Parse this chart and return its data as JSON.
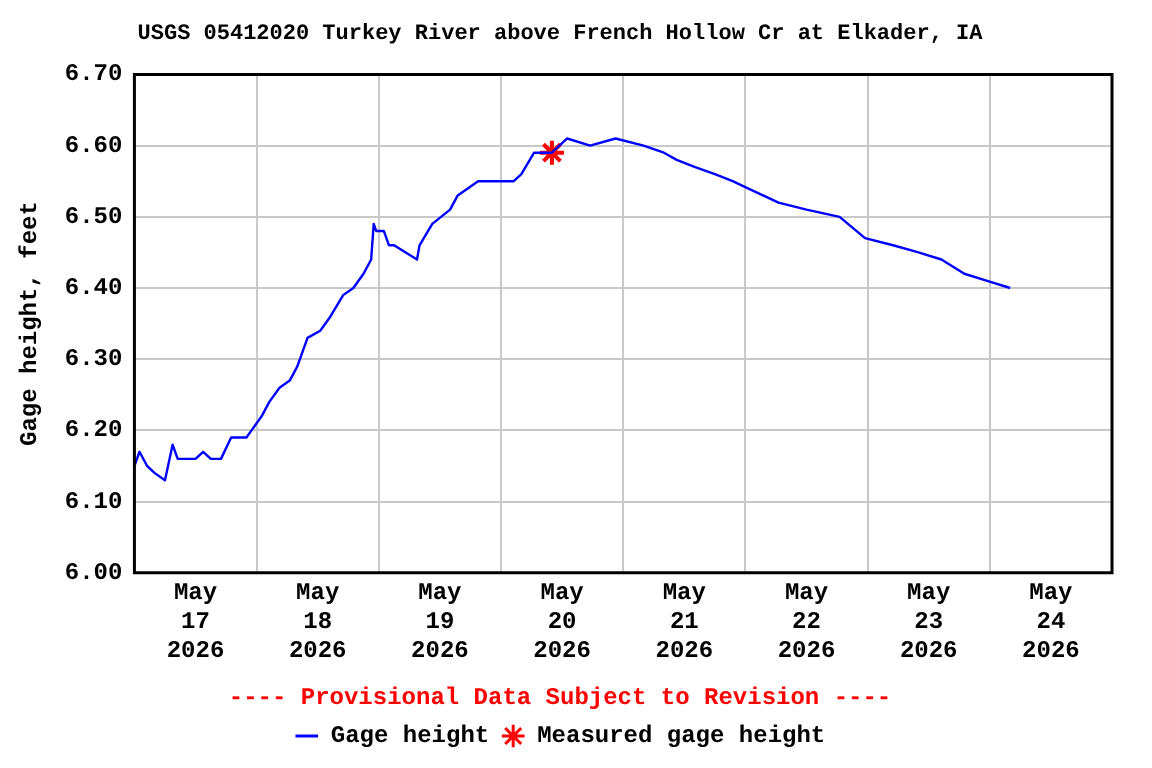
{
  "chart_data": {
    "type": "line",
    "title": "USGS 05412020 Turkey River above French Hollow Cr at Elkader, IA",
    "ylabel": "Gage height, feet",
    "annotations": [
      "---- Provisional Data Subject to Revision ----"
    ],
    "xlim": [
      "2026-05-17T00:00",
      "2026-05-25T00:00"
    ],
    "xticks": [
      {
        "value": "2026-05-17T00:00",
        "label": null
      },
      {
        "value": "2026-05-17T12:00",
        "label": "May 17 2026"
      },
      {
        "value": "2026-05-18T00:00",
        "label": null
      },
      {
        "value": "2026-05-18T12:00",
        "label": "May 18 2026"
      },
      {
        "value": "2026-05-19T00:00",
        "label": null
      },
      {
        "value": "2026-05-19T12:00",
        "label": "May 19 2026"
      },
      {
        "value": "2026-05-20T00:00",
        "label": null
      },
      {
        "value": "2026-05-20T12:00",
        "label": "May 20 2026"
      },
      {
        "value": "2026-05-21T00:00",
        "label": null
      },
      {
        "value": "2026-05-21T12:00",
        "label": "May 21 2026"
      },
      {
        "value": "2026-05-22T00:00",
        "label": null
      },
      {
        "value": "2026-05-22T12:00",
        "label": "May 22 2026"
      },
      {
        "value": "2026-05-23T00:00",
        "label": null
      },
      {
        "value": "2026-05-23T12:00",
        "label": "May 23 2026"
      },
      {
        "value": "2026-05-24T00:00",
        "label": null
      },
      {
        "value": "2026-05-24T12:00",
        "label": "May 24 2026"
      },
      {
        "value": "2026-05-25T00:00",
        "label": null
      }
    ],
    "ylim": [
      6.0,
      6.7
    ],
    "yticks": [
      {
        "value": 6.0,
        "label": "6.00"
      },
      {
        "value": 6.1,
        "label": "6.10"
      },
      {
        "value": 6.2,
        "label": "6.20"
      },
      {
        "value": 6.3,
        "label": "6.30"
      },
      {
        "value": 6.4,
        "label": "6.40"
      },
      {
        "value": 6.5,
        "label": "6.50"
      },
      {
        "value": 6.6,
        "label": "6.60"
      },
      {
        "value": 6.7,
        "label": "6.70"
      }
    ],
    "grid": true,
    "legend": "bottom",
    "series": [
      {
        "name": "Gage height",
        "color": "#0000ff",
        "marker": "none",
        "x": [
          "2026-05-17T00:00",
          "2026-05-17T01:00",
          "2026-05-17T02:30",
          "2026-05-17T04:00",
          "2026-05-17T06:00",
          "2026-05-17T07:30",
          "2026-05-17T08:30",
          "2026-05-17T12:00",
          "2026-05-17T13:30",
          "2026-05-17T15:00",
          "2026-05-17T17:00",
          "2026-05-17T19:00",
          "2026-05-17T22:00",
          "2026-05-17T23:00",
          "2026-05-18T01:00",
          "2026-05-18T02:30",
          "2026-05-18T04:30",
          "2026-05-18T06:30",
          "2026-05-18T08:00",
          "2026-05-18T10:00",
          "2026-05-18T12:30",
          "2026-05-18T14:30",
          "2026-05-18T17:00",
          "2026-05-18T19:00",
          "2026-05-18T21:00",
          "2026-05-18T22:30",
          "2026-05-18T23:00",
          "2026-05-18T23:30",
          "2026-05-19T01:00",
          "2026-05-19T02:00",
          "2026-05-19T03:00",
          "2026-05-19T07:30",
          "2026-05-19T08:00",
          "2026-05-19T10:30",
          "2026-05-19T14:00",
          "2026-05-19T15:30",
          "2026-05-19T19:30",
          "2026-05-19T22:00",
          "2026-05-20T02:30",
          "2026-05-20T04:00",
          "2026-05-20T06:30",
          "2026-05-20T10:00",
          "2026-05-20T13:00",
          "2026-05-20T17:30",
          "2026-05-20T22:30",
          "2026-05-21T04:00",
          "2026-05-21T08:00",
          "2026-05-21T10:30",
          "2026-05-21T14:00",
          "2026-05-21T18:00",
          "2026-05-21T21:30",
          "2026-05-22T00:30",
          "2026-05-22T06:30",
          "2026-05-22T12:00",
          "2026-05-22T18:30",
          "2026-05-22T23:30",
          "2026-05-23T05:00",
          "2026-05-23T10:00",
          "2026-05-23T14:30",
          "2026-05-23T19:00",
          "2026-05-23T23:30",
          "2026-05-24T04:00"
        ],
        "values": [
          6.15,
          6.17,
          6.15,
          6.14,
          6.13,
          6.18,
          6.16,
          6.16,
          6.17,
          6.16,
          6.16,
          6.19,
          6.19,
          6.2,
          6.22,
          6.24,
          6.26,
          6.27,
          6.29,
          6.33,
          6.34,
          6.36,
          6.39,
          6.4,
          6.42,
          6.44,
          6.49,
          6.48,
          6.48,
          6.46,
          6.46,
          6.44,
          6.46,
          6.49,
          6.51,
          6.53,
          6.55,
          6.55,
          6.55,
          6.56,
          6.59,
          6.59,
          6.61,
          6.6,
          6.61,
          6.6,
          6.59,
          6.58,
          6.57,
          6.56,
          6.55,
          6.54,
          6.52,
          6.51,
          6.5,
          6.47,
          6.46,
          6.45,
          6.44,
          6.42,
          6.41,
          6.4
        ]
      },
      {
        "name": "Measured gage height",
        "type": "scatter",
        "color": "#ff0000",
        "marker": "cross",
        "x": [
          "2026-05-20T10:00"
        ],
        "values": [
          6.59
        ]
      }
    ]
  }
}
